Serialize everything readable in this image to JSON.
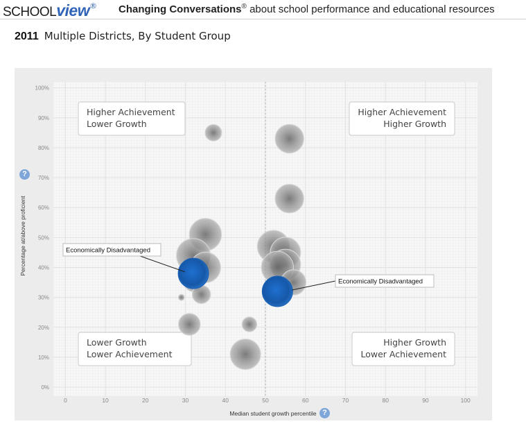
{
  "header": {
    "logo_school": "SCHOOL",
    "logo_view": "view",
    "logo_mark": "®",
    "tagline_bold": "Changing Conversations",
    "tagline_mark": "®",
    "tagline_rest": " about school performance and educational resources"
  },
  "page": {
    "year": "2011",
    "title": "Multiple Districts, By Student Group"
  },
  "help_icon": "?",
  "colors": {
    "panel_bg": "#ececec",
    "plot_bg": "#f7f7f7",
    "bubble_gray": "#a9a9a9",
    "bubble_highlight": "#1c63b7",
    "help_badge": "#7ea6d9"
  },
  "chart_data": {
    "type": "scatter",
    "title": "",
    "xlabel": "Median student growth percentile",
    "ylabel": "Percentage at/above proficient",
    "xlim": [
      -3,
      103
    ],
    "ylim": [
      -3,
      102
    ],
    "x_ticks": [
      0,
      10,
      20,
      30,
      40,
      50,
      60,
      70,
      80,
      90,
      100
    ],
    "x_tick_labels": [
      "0",
      "10",
      "20",
      "30",
      "40",
      "50",
      "60",
      "70",
      "80",
      "90",
      "100"
    ],
    "y_ticks": [
      0,
      10,
      20,
      30,
      40,
      50,
      60,
      70,
      80,
      90,
      100
    ],
    "y_tick_labels": [
      "0%",
      "10%",
      "20%",
      "30%",
      "40%",
      "50%",
      "60%",
      "70%",
      "80%",
      "90%",
      "100%"
    ],
    "grid": true,
    "reference_line_x": 50,
    "quadrant_labels": [
      {
        "position": "top-left",
        "lines": [
          "Higher Achievement",
          "Lower Growth"
        ]
      },
      {
        "position": "top-right",
        "lines": [
          "Higher Achievement",
          "Higher Growth"
        ]
      },
      {
        "position": "bottom-left",
        "lines": [
          "Lower Growth",
          "Lower Achievement"
        ]
      },
      {
        "position": "bottom-right",
        "lines": [
          "Higher Growth",
          "Lower Achievement"
        ]
      }
    ],
    "bubbles": [
      {
        "x": 37,
        "y": 85,
        "size": 8,
        "highlight": false
      },
      {
        "x": 56,
        "y": 83,
        "size": 15,
        "highlight": false
      },
      {
        "x": 56,
        "y": 63,
        "size": 15,
        "highlight": false
      },
      {
        "x": 35,
        "y": 51,
        "size": 17,
        "highlight": false
      },
      {
        "x": 32,
        "y": 44,
        "size": 18,
        "highlight": false
      },
      {
        "x": 35,
        "y": 40,
        "size": 16,
        "highlight": false
      },
      {
        "x": 52,
        "y": 47,
        "size": 17,
        "highlight": false
      },
      {
        "x": 55,
        "y": 45,
        "size": 16,
        "highlight": false
      },
      {
        "x": 55,
        "y": 41,
        "size": 16,
        "highlight": false
      },
      {
        "x": 53,
        "y": 40,
        "size": 17,
        "highlight": false
      },
      {
        "x": 57,
        "y": 35,
        "size": 13,
        "highlight": false
      },
      {
        "x": 32,
        "y": 35,
        "size": 9,
        "highlight": false
      },
      {
        "x": 34,
        "y": 31,
        "size": 9,
        "highlight": false
      },
      {
        "x": 29,
        "y": 30,
        "size": 2,
        "highlight": false
      },
      {
        "x": 31,
        "y": 21,
        "size": 11,
        "highlight": false
      },
      {
        "x": 46,
        "y": 21,
        "size": 7,
        "highlight": false
      },
      {
        "x": 45,
        "y": 11,
        "size": 16,
        "highlight": false
      },
      {
        "x": 32,
        "y": 38,
        "size": 16,
        "highlight": true,
        "label": "Economically Disadvantaged"
      },
      {
        "x": 53,
        "y": 32,
        "size": 16,
        "highlight": true,
        "label": "Economically Disadvantaged"
      }
    ]
  }
}
